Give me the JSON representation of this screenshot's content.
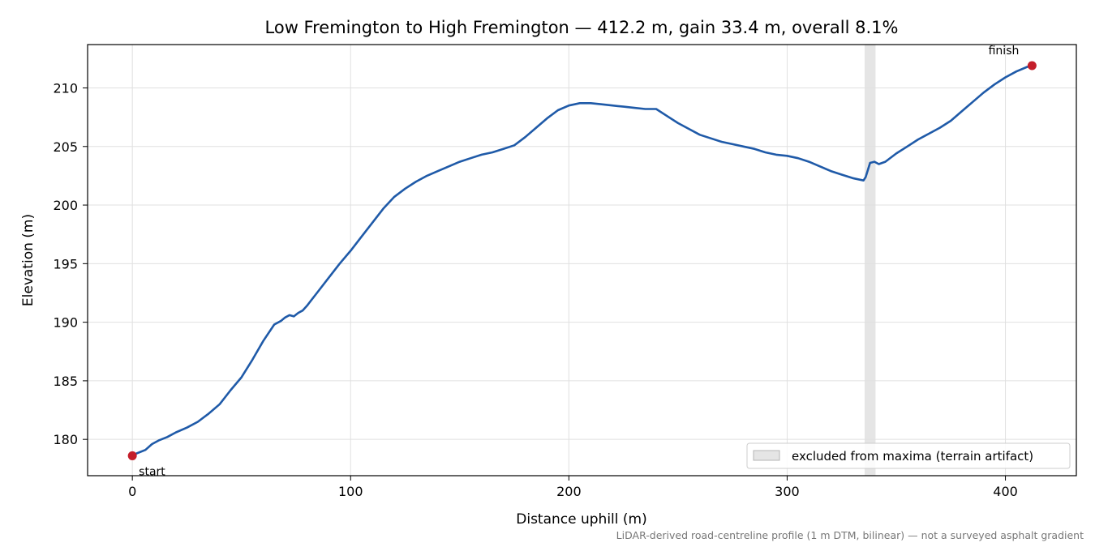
{
  "chart_data": {
    "type": "line",
    "title": "Low Fremington to High Fremington — 412.2 m, gain 33.4 m, overall 8.1%",
    "xlabel": "Distance uphill (m)",
    "ylabel": "Elevation (m)",
    "xlim": [
      -20.5,
      432.5
    ],
    "ylim": [
      176.9,
      213.7
    ],
    "xticks": [
      0,
      100,
      200,
      300,
      400
    ],
    "yticks": [
      180,
      185,
      190,
      195,
      200,
      205,
      210
    ],
    "grid": true,
    "series": [
      {
        "color": "#1f5aa8",
        "x": [
          0,
          2,
          6,
          9,
          12,
          16,
          20,
          25,
          30,
          35,
          40,
          45,
          50,
          55,
          60,
          65,
          68,
          70,
          72,
          74,
          76,
          78,
          80,
          85,
          90,
          95,
          100,
          105,
          110,
          115,
          120,
          125,
          130,
          135,
          140,
          145,
          150,
          155,
          160,
          165,
          170,
          175,
          180,
          185,
          190,
          195,
          200,
          205,
          210,
          215,
          220,
          225,
          230,
          235,
          240,
          245,
          250,
          255,
          260,
          265,
          270,
          275,
          280,
          285,
          290,
          295,
          300,
          305,
          310,
          315,
          320,
          325,
          330,
          335,
          336,
          338,
          340,
          342,
          345,
          350,
          355,
          360,
          365,
          370,
          375,
          380,
          385,
          390,
          395,
          400,
          405,
          410,
          412.2
        ],
        "y": [
          178.6,
          178.8,
          179.1,
          179.6,
          179.9,
          180.2,
          180.6,
          181.0,
          181.5,
          182.2,
          183.0,
          184.2,
          185.3,
          186.8,
          188.4,
          189.8,
          190.1,
          190.4,
          190.6,
          190.5,
          190.8,
          191.0,
          191.4,
          192.6,
          193.8,
          195.0,
          196.1,
          197.3,
          198.5,
          199.7,
          200.7,
          201.4,
          202.0,
          202.5,
          202.9,
          203.3,
          203.7,
          204.0,
          204.3,
          204.5,
          204.8,
          205.1,
          205.8,
          206.6,
          207.4,
          208.1,
          208.5,
          208.7,
          208.7,
          208.6,
          208.5,
          208.4,
          208.3,
          208.2,
          208.2,
          207.6,
          207.0,
          206.5,
          206.0,
          205.7,
          205.4,
          205.2,
          205.0,
          204.8,
          204.5,
          204.3,
          204.2,
          204.0,
          203.7,
          203.3,
          202.9,
          202.6,
          202.3,
          202.1,
          202.4,
          203.6,
          203.7,
          203.5,
          203.7,
          204.4,
          205.0,
          205.6,
          206.1,
          206.6,
          207.2,
          208.0,
          208.8,
          209.6,
          210.3,
          210.9,
          211.4,
          211.8,
          211.9
        ]
      }
    ],
    "markers": [
      {
        "x": 0,
        "y": 178.6,
        "label": "start",
        "color": "#c41e2a"
      },
      {
        "x": 412.2,
        "y": 211.9,
        "label": "finish",
        "color": "#c41e2a"
      }
    ],
    "shaded_region": {
      "x0": 335.5,
      "x1": 340.5,
      "color": "#cfcfcf",
      "label": "excluded from maxima (terrain artifact)"
    },
    "legend_position": "lower-right",
    "caption": "LiDAR-derived road-centreline profile (1 m DTM, bilinear) — not a surveyed asphalt gradient"
  }
}
